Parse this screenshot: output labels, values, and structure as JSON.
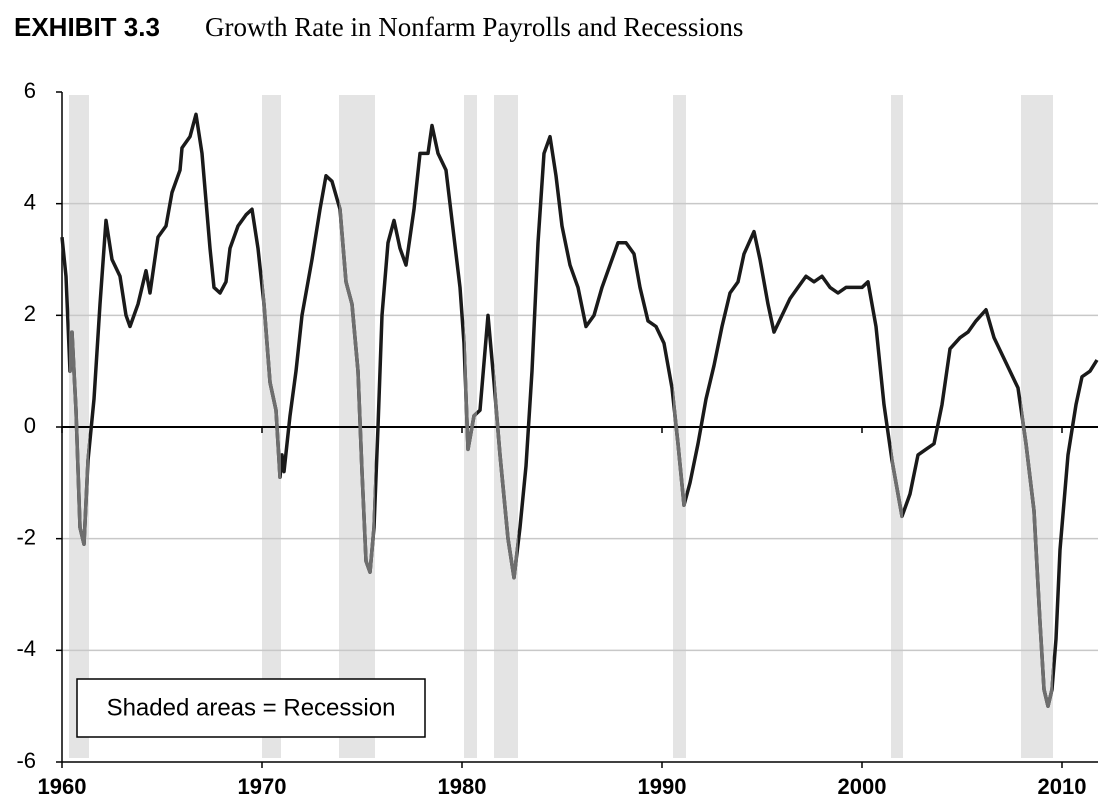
{
  "chart_data": {
    "type": "line",
    "exhibit": "EXHIBIT 3.3",
    "title": "Growth Rate in Nonfarm Payrolls and Recessions",
    "legend_note": "Shaded areas = Recession",
    "xlim": [
      1960,
      2011.8
    ],
    "xticks": [
      1960,
      1970,
      1980,
      1990,
      2000,
      2010
    ],
    "ylim": [
      -6,
      6
    ],
    "yticks": [
      -6,
      -4,
      -2,
      0,
      2,
      4,
      6
    ],
    "grid": true,
    "recession_color": "#e4e4e4",
    "recession_line_color": "#6e6e6e",
    "recessions": [
      [
        1960.35,
        1961.35
      ],
      [
        1970.0,
        1970.95
      ],
      [
        1973.85,
        1975.65
      ],
      [
        1980.1,
        1980.75
      ],
      [
        1981.6,
        1982.8
      ],
      [
        1990.55,
        1991.2
      ],
      [
        2001.45,
        2002.05
      ],
      [
        2007.95,
        2009.55
      ]
    ],
    "series": [
      {
        "color": "#1a1a1a",
        "x": [
          1960.0,
          1960.2,
          1960.4,
          1960.5,
          1960.7,
          1960.9,
          1961.1,
          1961.3,
          1961.6,
          1961.9,
          1962.2,
          1962.5,
          1962.9,
          1963.2,
          1963.4,
          1963.8,
          1964.2,
          1964.4,
          1964.8,
          1965.2,
          1965.5,
          1965.9,
          1966.0,
          1966.4,
          1966.7,
          1967.0,
          1967.4,
          1967.6,
          1967.9,
          1968.2,
          1968.4,
          1968.8,
          1969.2,
          1969.5,
          1969.8,
          1970.1,
          1970.4,
          1970.7,
          1970.9,
          1971.0,
          1971.1,
          1971.4,
          1971.7,
          1972.0,
          1972.5,
          1972.9,
          1973.2,
          1973.5,
          1973.9,
          1974.2,
          1974.5,
          1974.8,
          1975.0,
          1975.2,
          1975.4,
          1975.6,
          1975.8,
          1976.0,
          1976.3,
          1976.6,
          1976.9,
          1977.2,
          1977.6,
          1977.9,
          1978.3,
          1978.5,
          1978.8,
          1979.2,
          1979.6,
          1979.9,
          1980.1,
          1980.3,
          1980.6,
          1980.9,
          1981.3,
          1981.6,
          1981.9,
          1982.3,
          1982.6,
          1982.9,
          1983.2,
          1983.5,
          1983.8,
          1984.1,
          1984.4,
          1984.7,
          1985.0,
          1985.4,
          1985.8,
          1986.2,
          1986.6,
          1987.0,
          1987.4,
          1987.8,
          1988.2,
          1988.6,
          1988.9,
          1989.3,
          1989.7,
          1990.1,
          1990.5,
          1990.8,
          1991.1,
          1991.4,
          1991.8,
          1992.2,
          1992.6,
          1993.0,
          1993.4,
          1993.8,
          1994.1,
          1994.6,
          1994.9,
          1995.3,
          1995.6,
          1996.0,
          1996.4,
          1996.8,
          1997.2,
          1997.6,
          1998.0,
          1998.4,
          1998.8,
          1999.2,
          1999.6,
          2000.0,
          2000.3,
          2000.7,
          2001.1,
          2001.5,
          2002.0,
          2002.4,
          2002.8,
          2003.2,
          2003.6,
          2004.0,
          2004.4,
          2004.9,
          2005.3,
          2005.7,
          2006.2,
          2006.6,
          2007.0,
          2007.4,
          2007.8,
          2008.2,
          2008.6,
          2008.9,
          2009.1,
          2009.3,
          2009.5,
          2009.7,
          2009.9,
          2010.3,
          2010.7,
          2011.0,
          2011.4,
          2011.75
        ],
        "values": [
          3.4,
          2.7,
          1.0,
          1.7,
          0.3,
          -1.8,
          -2.1,
          -0.6,
          0.5,
          2.2,
          3.7,
          3.0,
          2.7,
          2.0,
          1.8,
          2.2,
          2.8,
          2.4,
          3.4,
          3.6,
          4.2,
          4.6,
          5.0,
          5.2,
          5.6,
          4.9,
          3.2,
          2.5,
          2.4,
          2.6,
          3.2,
          3.6,
          3.8,
          3.9,
          3.2,
          2.2,
          0.8,
          0.3,
          -0.9,
          -0.5,
          -0.8,
          0.2,
          1.0,
          2.0,
          3.0,
          3.9,
          4.5,
          4.4,
          3.9,
          2.6,
          2.2,
          1.0,
          -0.8,
          -2.4,
          -2.6,
          -1.8,
          0.0,
          2.0,
          3.3,
          3.7,
          3.2,
          2.9,
          3.9,
          4.9,
          4.9,
          5.4,
          4.9,
          4.6,
          3.4,
          2.5,
          1.5,
          -0.4,
          0.2,
          0.3,
          2.0,
          0.8,
          -0.5,
          -2.0,
          -2.7,
          -1.8,
          -0.7,
          1.0,
          3.3,
          4.9,
          5.2,
          4.5,
          3.6,
          2.9,
          2.5,
          1.8,
          2.0,
          2.5,
          2.9,
          3.3,
          3.3,
          3.1,
          2.5,
          1.9,
          1.8,
          1.5,
          0.7,
          -0.3,
          -1.4,
          -1.0,
          -0.3,
          0.5,
          1.1,
          1.8,
          2.4,
          2.6,
          3.1,
          3.5,
          3.0,
          2.2,
          1.7,
          2.0,
          2.3,
          2.5,
          2.7,
          2.6,
          2.7,
          2.5,
          2.4,
          2.5,
          2.5,
          2.5,
          2.6,
          1.8,
          0.4,
          -0.6,
          -1.6,
          -1.2,
          -0.5,
          -0.4,
          -0.3,
          0.4,
          1.4,
          1.6,
          1.7,
          1.9,
          2.1,
          1.6,
          1.3,
          1.0,
          0.7,
          -0.3,
          -1.5,
          -3.5,
          -4.7,
          -5.0,
          -4.7,
          -3.8,
          -2.2,
          -0.5,
          0.4,
          0.9,
          1.0,
          1.2
        ]
      }
    ]
  }
}
